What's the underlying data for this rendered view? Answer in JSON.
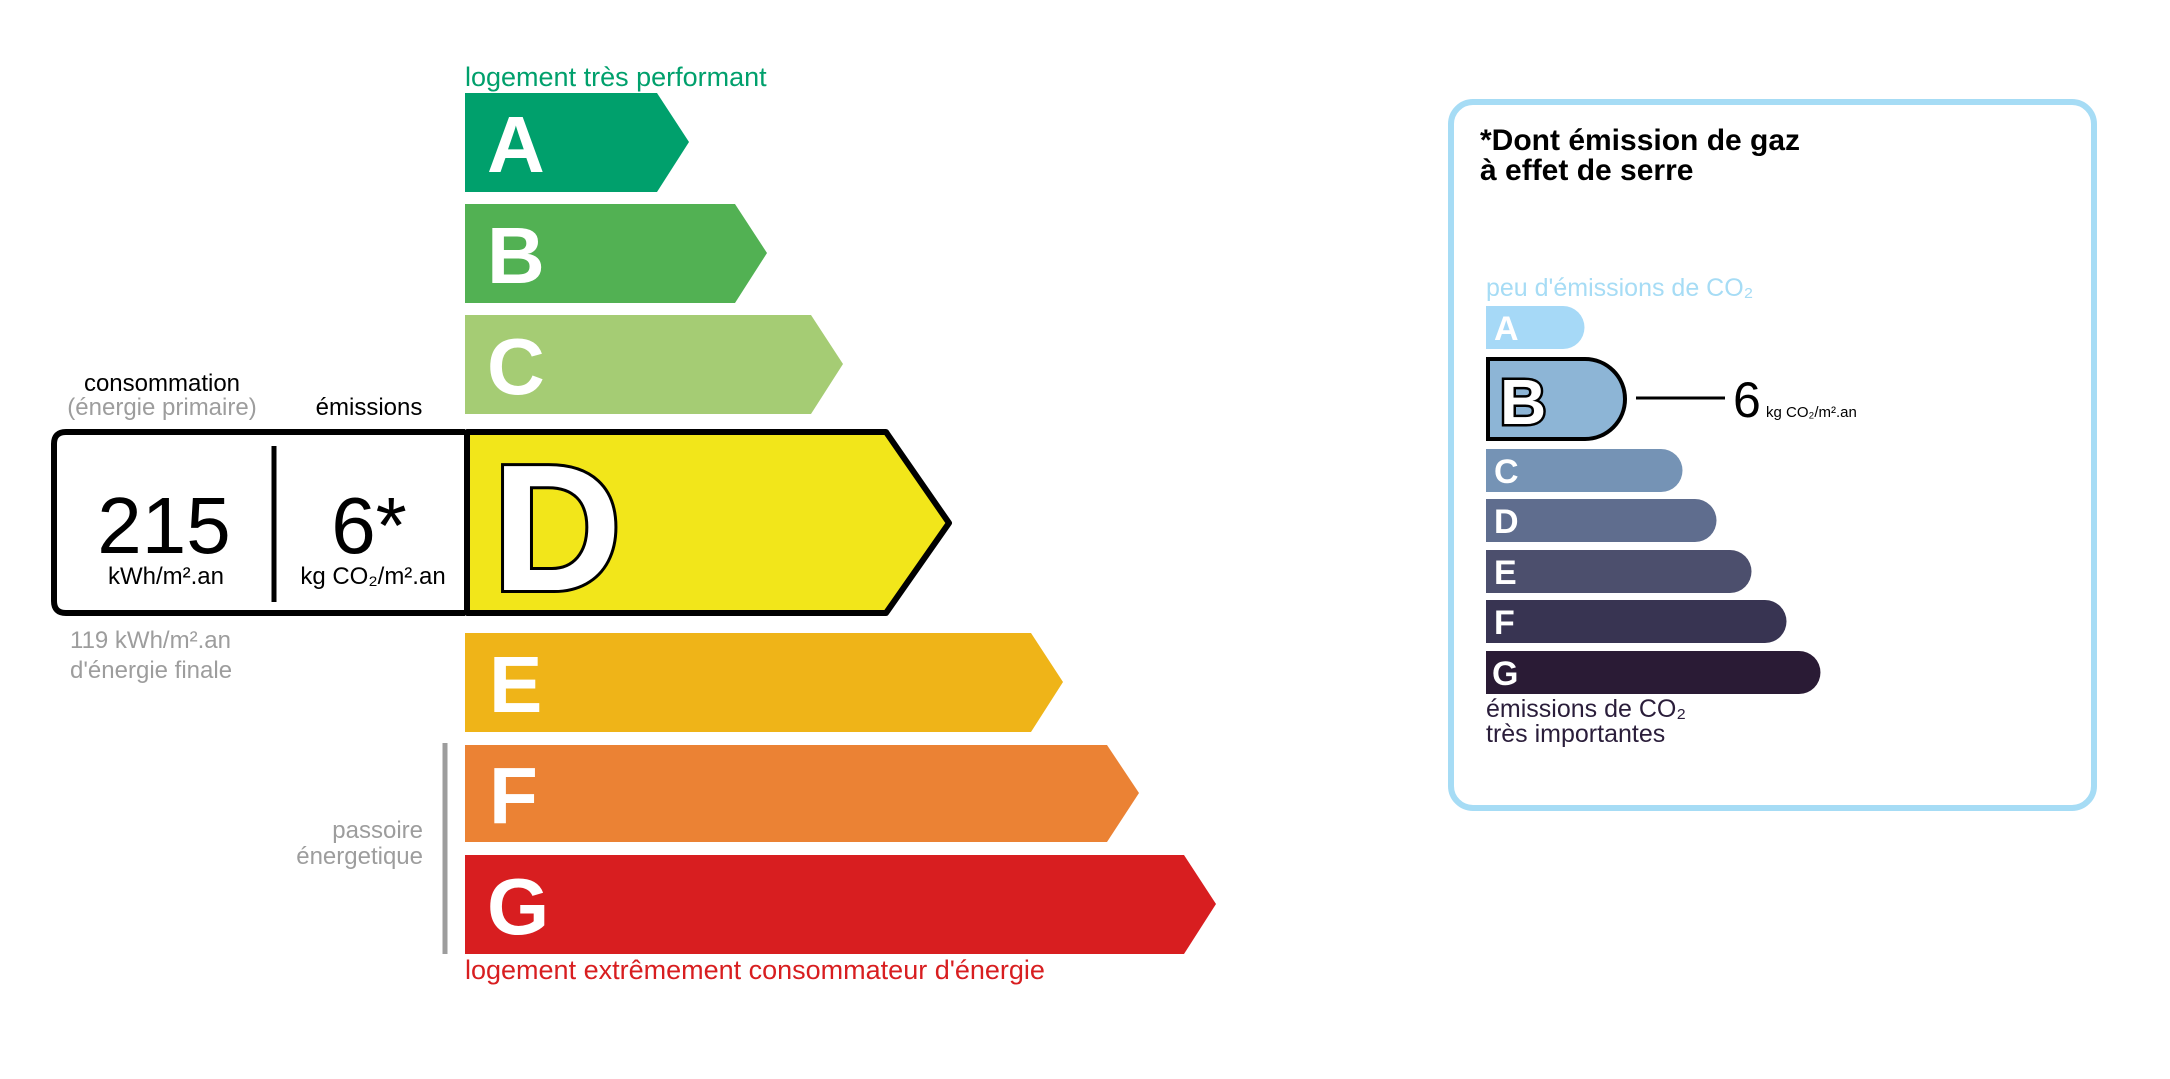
{
  "energy": {
    "top_label": "logement très performant",
    "bottom_label": "logement extrêmement consommateur d'énergie",
    "consumption_label": "consommation",
    "consumption_sublabel": "(énergie primaire)",
    "emissions_label": "émissions",
    "consumption_value": "215",
    "consumption_unit": "kWh/m².an",
    "emissions_value": "6*",
    "emissions_unit": "kg CO₂/m².an",
    "final_energy_value": "119 kWh/m².an",
    "final_energy_label": "d'énergie finale",
    "passoire_line1": "passoire",
    "passoire_line2": "énergetique",
    "current_class": "D",
    "classes": [
      {
        "letter": "A",
        "color": "#00a06c"
      },
      {
        "letter": "B",
        "color": "#52b153"
      },
      {
        "letter": "C",
        "color": "#a5cc74"
      },
      {
        "letter": "D",
        "color": "#f2e61a"
      },
      {
        "letter": "E",
        "color": "#efb418"
      },
      {
        "letter": "F",
        "color": "#eb8234"
      },
      {
        "letter": "G",
        "color": "#d81e20"
      }
    ],
    "top_label_color": "#00a06c",
    "bottom_label_color": "#d81e20"
  },
  "ghg": {
    "title_line1": "*Dont émission de gaz",
    "title_line2": "à effet de serre",
    "top_label": "peu d'émissions de CO₂",
    "bottom_label_line1": "émissions de CO₂",
    "bottom_label_line2": "très importantes",
    "current_class": "B",
    "value": "6",
    "unit": "kg CO₂/m².an",
    "border_color": "#a6dcf5",
    "classes": [
      {
        "letter": "A",
        "color": "#a6d9f7"
      },
      {
        "letter": "B",
        "color": "#8db5d6"
      },
      {
        "letter": "C",
        "color": "#7593b5"
      },
      {
        "letter": "D",
        "color": "#5f6d8e"
      },
      {
        "letter": "E",
        "color": "#4c4f6d"
      },
      {
        "letter": "F",
        "color": "#383452"
      },
      {
        "letter": "G",
        "color": "#2a1b35"
      }
    ]
  }
}
